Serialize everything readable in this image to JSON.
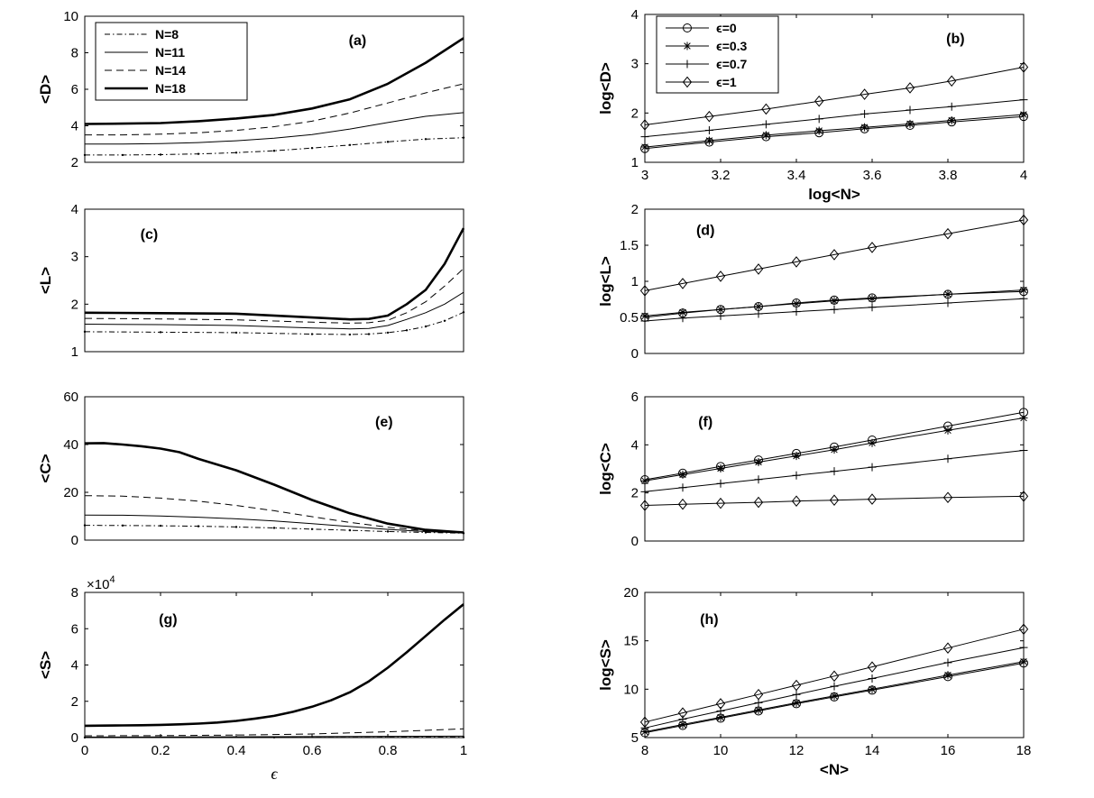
{
  "chart_data": [
    {
      "id": "a",
      "panel_label": "(a)",
      "type": "line",
      "xlabel": "",
      "ylabel": "<D>",
      "xlim": [
        0,
        1
      ],
      "ylim": [
        2,
        10
      ],
      "yticks": [
        2,
        4,
        6,
        8,
        10
      ],
      "xticks": [],
      "legend": {
        "placement": "top-left",
        "entries": [
          "N=8",
          "N=11",
          "N=14",
          "N=18"
        ]
      },
      "series": [
        {
          "name": "N=8",
          "style": "dashdot",
          "x": [
            0,
            0.1,
            0.2,
            0.3,
            0.4,
            0.5,
            0.6,
            0.7,
            0.8,
            0.9,
            1.0
          ],
          "y": [
            2.4,
            2.4,
            2.42,
            2.46,
            2.53,
            2.63,
            2.78,
            2.95,
            3.12,
            3.27,
            3.35
          ]
        },
        {
          "name": "N=11",
          "style": "solid",
          "x": [
            0,
            0.1,
            0.2,
            0.3,
            0.4,
            0.5,
            0.6,
            0.7,
            0.8,
            0.9,
            1.0
          ],
          "y": [
            3.0,
            3.0,
            3.02,
            3.08,
            3.18,
            3.32,
            3.52,
            3.82,
            4.18,
            4.52,
            4.72
          ]
        },
        {
          "name": "N=14",
          "style": "dashed",
          "x": [
            0,
            0.1,
            0.2,
            0.3,
            0.4,
            0.5,
            0.6,
            0.7,
            0.8,
            0.9,
            1.0
          ],
          "y": [
            3.5,
            3.5,
            3.54,
            3.62,
            3.75,
            3.95,
            4.25,
            4.7,
            5.25,
            5.8,
            6.3
          ]
        },
        {
          "name": "N=18",
          "style": "thick",
          "x": [
            0,
            0.1,
            0.2,
            0.3,
            0.4,
            0.5,
            0.6,
            0.7,
            0.8,
            0.9,
            1.0
          ],
          "y": [
            4.1,
            4.12,
            4.15,
            4.25,
            4.4,
            4.6,
            4.95,
            5.45,
            6.3,
            7.45,
            8.8
          ]
        }
      ]
    },
    {
      "id": "b",
      "panel_label": "(b)",
      "type": "line",
      "xlabel": "log<N>",
      "ylabel": "log<D>",
      "xlim": [
        3,
        4
      ],
      "ylim": [
        1,
        4
      ],
      "xticks": [
        3,
        3.2,
        3.4,
        3.6,
        3.8,
        4
      ],
      "yticks": [
        1,
        2,
        3,
        4
      ],
      "legend": {
        "placement": "top-left",
        "entries": [
          "ϵ=0",
          "ϵ=0.3",
          "ϵ=0.7",
          "ϵ=1"
        ]
      },
      "series": [
        {
          "name": "ϵ=0",
          "marker": "circle",
          "x": [
            3,
            3.17,
            3.32,
            3.46,
            3.58,
            3.7,
            3.81,
            4
          ],
          "y": [
            1.28,
            1.41,
            1.52,
            1.6,
            1.68,
            1.75,
            1.82,
            1.93
          ]
        },
        {
          "name": "ϵ=0.3",
          "marker": "star",
          "x": [
            3,
            3.17,
            3.32,
            3.46,
            3.58,
            3.7,
            3.81,
            4
          ],
          "y": [
            1.31,
            1.44,
            1.55,
            1.64,
            1.71,
            1.78,
            1.85,
            1.97
          ]
        },
        {
          "name": "ϵ=0.7",
          "marker": "plus",
          "x": [
            3,
            3.17,
            3.32,
            3.46,
            3.58,
            3.7,
            3.81,
            4
          ],
          "y": [
            1.52,
            1.65,
            1.77,
            1.88,
            1.98,
            2.06,
            2.13,
            2.27
          ]
        },
        {
          "name": "ϵ=1",
          "marker": "diamond",
          "x": [
            3,
            3.17,
            3.32,
            3.46,
            3.58,
            3.7,
            3.81,
            4
          ],
          "y": [
            1.76,
            1.93,
            2.08,
            2.24,
            2.38,
            2.51,
            2.65,
            2.93
          ]
        }
      ]
    },
    {
      "id": "c",
      "panel_label": "(c)",
      "type": "line",
      "xlabel": "",
      "ylabel": "<L>",
      "xlim": [
        0,
        1
      ],
      "ylim": [
        1,
        4
      ],
      "yticks": [
        1,
        2,
        3,
        4
      ],
      "xticks": [],
      "series": [
        {
          "name": "N=8",
          "style": "dashdot",
          "x": [
            0,
            0.2,
            0.4,
            0.6,
            0.7,
            0.75,
            0.8,
            0.85,
            0.9,
            0.95,
            1.0
          ],
          "y": [
            1.42,
            1.41,
            1.4,
            1.37,
            1.36,
            1.37,
            1.4,
            1.45,
            1.53,
            1.65,
            1.83
          ]
        },
        {
          "name": "N=11",
          "style": "solid",
          "x": [
            0,
            0.2,
            0.4,
            0.6,
            0.7,
            0.75,
            0.8,
            0.85,
            0.9,
            0.95,
            1.0
          ],
          "y": [
            1.58,
            1.57,
            1.55,
            1.5,
            1.48,
            1.49,
            1.55,
            1.68,
            1.82,
            2.0,
            2.25
          ]
        },
        {
          "name": "N=14",
          "style": "dashed",
          "x": [
            0,
            0.2,
            0.4,
            0.6,
            0.7,
            0.75,
            0.8,
            0.85,
            0.9,
            0.95,
            1.0
          ],
          "y": [
            1.7,
            1.69,
            1.67,
            1.62,
            1.6,
            1.61,
            1.66,
            1.82,
            2.05,
            2.38,
            2.75
          ]
        },
        {
          "name": "N=18",
          "style": "thick",
          "x": [
            0,
            0.2,
            0.4,
            0.6,
            0.7,
            0.75,
            0.8,
            0.85,
            0.9,
            0.95,
            1.0
          ],
          "y": [
            1.82,
            1.81,
            1.8,
            1.72,
            1.68,
            1.69,
            1.76,
            2.0,
            2.3,
            2.85,
            3.6
          ]
        }
      ]
    },
    {
      "id": "d",
      "panel_label": "(d)",
      "type": "line",
      "xlabel": "",
      "ylabel": "log<L>",
      "xlim": [
        8,
        18
      ],
      "ylim": [
        0,
        2
      ],
      "yticks": [
        0,
        0.5,
        1,
        1.5,
        2
      ],
      "xticks": [],
      "series": [
        {
          "name": "ϵ=0",
          "marker": "circle",
          "x": [
            8,
            9,
            10,
            11,
            12,
            13,
            14,
            16,
            18
          ],
          "y": [
            0.5,
            0.56,
            0.61,
            0.65,
            0.7,
            0.74,
            0.77,
            0.82,
            0.86
          ]
        },
        {
          "name": "ϵ=0.3",
          "marker": "star",
          "x": [
            8,
            9,
            10,
            11,
            12,
            13,
            14,
            16,
            18
          ],
          "y": [
            0.52,
            0.57,
            0.61,
            0.65,
            0.69,
            0.73,
            0.76,
            0.82,
            0.88
          ]
        },
        {
          "name": "ϵ=0.7",
          "marker": "plus",
          "x": [
            8,
            9,
            10,
            11,
            12,
            13,
            14,
            16,
            18
          ],
          "y": [
            0.45,
            0.49,
            0.52,
            0.55,
            0.58,
            0.61,
            0.64,
            0.7,
            0.76
          ]
        },
        {
          "name": "ϵ=1",
          "marker": "diamond",
          "x": [
            8,
            9,
            10,
            11,
            12,
            13,
            14,
            16,
            18
          ],
          "y": [
            0.87,
            0.97,
            1.07,
            1.17,
            1.27,
            1.37,
            1.47,
            1.66,
            1.85
          ]
        }
      ]
    },
    {
      "id": "e",
      "panel_label": "(e)",
      "type": "line",
      "xlabel": "",
      "ylabel": "<C>",
      "xlim": [
        0,
        1
      ],
      "ylim": [
        0,
        60
      ],
      "yticks": [
        0,
        20,
        40,
        60
      ],
      "xticks": [],
      "series": [
        {
          "name": "N=8",
          "style": "dashdot",
          "x": [
            0,
            0.1,
            0.2,
            0.3,
            0.4,
            0.5,
            0.6,
            0.7,
            0.8,
            0.9,
            1.0
          ],
          "y": [
            6.2,
            6.1,
            6.0,
            5.8,
            5.5,
            5.1,
            4.6,
            4.1,
            3.6,
            3.2,
            2.9
          ]
        },
        {
          "name": "N=11",
          "style": "solid",
          "x": [
            0,
            0.1,
            0.2,
            0.3,
            0.4,
            0.5,
            0.6,
            0.7,
            0.8,
            0.9,
            1.0
          ],
          "y": [
            10.5,
            10.4,
            10.1,
            9.6,
            8.9,
            8.0,
            6.9,
            5.7,
            4.5,
            3.6,
            3.0
          ]
        },
        {
          "name": "N=14",
          "style": "dashed",
          "x": [
            0,
            0.1,
            0.2,
            0.3,
            0.4,
            0.5,
            0.6,
            0.7,
            0.8,
            0.9,
            1.0
          ],
          "y": [
            18.6,
            18.4,
            17.6,
            16.3,
            14.5,
            12.3,
            9.8,
            7.4,
            5.4,
            3.9,
            3.1
          ]
        },
        {
          "name": "N=18",
          "style": "thick",
          "x": [
            0,
            0.05,
            0.1,
            0.15,
            0.2,
            0.25,
            0.3,
            0.4,
            0.5,
            0.6,
            0.7,
            0.8,
            0.9,
            1.0
          ],
          "y": [
            40.5,
            40.6,
            40.0,
            39.3,
            38.3,
            36.8,
            34.0,
            29.2,
            23.2,
            16.8,
            11.2,
            6.9,
            4.3,
            3.2
          ]
        }
      ]
    },
    {
      "id": "f",
      "panel_label": "(f)",
      "type": "line",
      "xlabel": "",
      "ylabel": "log<C>",
      "xlim": [
        8,
        18
      ],
      "ylim": [
        0,
        6
      ],
      "yticks": [
        0,
        2,
        4,
        6
      ],
      "xticks": [],
      "series": [
        {
          "name": "ϵ=0",
          "marker": "circle",
          "x": [
            8,
            9,
            10,
            11,
            12,
            13,
            14,
            16,
            18
          ],
          "y": [
            2.55,
            2.82,
            3.1,
            3.37,
            3.64,
            3.91,
            4.2,
            4.78,
            5.35
          ]
        },
        {
          "name": "ϵ=0.3",
          "marker": "star",
          "x": [
            8,
            9,
            10,
            11,
            12,
            13,
            14,
            16,
            18
          ],
          "y": [
            2.5,
            2.76,
            3.02,
            3.28,
            3.54,
            3.8,
            4.08,
            4.6,
            5.12
          ]
        },
        {
          "name": "ϵ=0.7",
          "marker": "plus",
          "x": [
            8,
            9,
            10,
            11,
            12,
            13,
            14,
            16,
            18
          ],
          "y": [
            2.05,
            2.22,
            2.39,
            2.56,
            2.73,
            2.9,
            3.07,
            3.42,
            3.77
          ]
        },
        {
          "name": "ϵ=1",
          "marker": "diamond",
          "x": [
            8,
            9,
            10,
            11,
            12,
            13,
            14,
            16,
            18
          ],
          "y": [
            1.48,
            1.53,
            1.57,
            1.61,
            1.66,
            1.7,
            1.74,
            1.81,
            1.86
          ]
        }
      ]
    },
    {
      "id": "g",
      "panel_label": "(g)",
      "type": "line",
      "xlabel": "ϵ",
      "ylabel": "<S>",
      "exponent_label": "×10",
      "exponent_power": "4",
      "xlim": [
        0,
        1
      ],
      "ylim": [
        0,
        8
      ],
      "xticks": [
        0,
        0.2,
        0.4,
        0.6,
        0.8,
        1
      ],
      "yticks": [
        0,
        2,
        4,
        6,
        8
      ],
      "series": [
        {
          "name": "N=8",
          "style": "dashdot",
          "x": [
            0,
            0.5,
            1.0
          ],
          "y": [
            0.005,
            0.01,
            0.02
          ]
        },
        {
          "name": "N=11",
          "style": "solid",
          "x": [
            0,
            0.5,
            1.0
          ],
          "y": [
            0.03,
            0.05,
            0.08
          ]
        },
        {
          "name": "N=14",
          "style": "dashed",
          "x": [
            0,
            0.2,
            0.4,
            0.6,
            0.8,
            1.0
          ],
          "y": [
            0.1,
            0.11,
            0.14,
            0.2,
            0.32,
            0.48
          ]
        },
        {
          "name": "N=18",
          "style": "thick",
          "x": [
            0,
            0.05,
            0.1,
            0.15,
            0.2,
            0.25,
            0.3,
            0.35,
            0.4,
            0.45,
            0.5,
            0.55,
            0.6,
            0.65,
            0.7,
            0.75,
            0.8,
            0.85,
            0.9,
            0.95,
            1.0
          ],
          "y": [
            0.65,
            0.66,
            0.67,
            0.68,
            0.7,
            0.73,
            0.77,
            0.83,
            0.92,
            1.05,
            1.2,
            1.42,
            1.7,
            2.05,
            2.5,
            3.1,
            3.85,
            4.7,
            5.6,
            6.5,
            7.35
          ]
        }
      ]
    },
    {
      "id": "h",
      "panel_label": "(h)",
      "type": "line",
      "xlabel": "<N>",
      "ylabel": "log<S>",
      "xlim": [
        8,
        18
      ],
      "ylim": [
        5,
        20
      ],
      "xticks": [
        8,
        10,
        12,
        14,
        16,
        18
      ],
      "yticks": [
        5,
        10,
        15,
        20
      ],
      "series": [
        {
          "name": "ϵ=0",
          "marker": "circle",
          "x": [
            8,
            9,
            10,
            11,
            12,
            13,
            14,
            16,
            18
          ],
          "y": [
            5.5,
            6.25,
            7.0,
            7.75,
            8.5,
            9.2,
            9.9,
            11.3,
            12.7
          ]
        },
        {
          "name": "ϵ=0.3",
          "marker": "star",
          "x": [
            8,
            9,
            10,
            11,
            12,
            13,
            14,
            16,
            18
          ],
          "y": [
            5.6,
            6.35,
            7.1,
            7.85,
            8.6,
            9.3,
            10.0,
            11.45,
            12.85
          ]
        },
        {
          "name": "ϵ=0.7",
          "marker": "plus",
          "x": [
            8,
            9,
            10,
            11,
            12,
            13,
            14,
            16,
            18
          ],
          "y": [
            6.0,
            6.9,
            7.75,
            8.6,
            9.45,
            10.3,
            11.1,
            12.75,
            14.3
          ]
        },
        {
          "name": "ϵ=1",
          "marker": "diamond",
          "x": [
            8,
            9,
            10,
            11,
            12,
            13,
            14,
            16,
            18
          ],
          "y": [
            6.6,
            7.55,
            8.5,
            9.45,
            10.4,
            11.35,
            12.3,
            14.25,
            16.2
          ]
        }
      ]
    }
  ]
}
